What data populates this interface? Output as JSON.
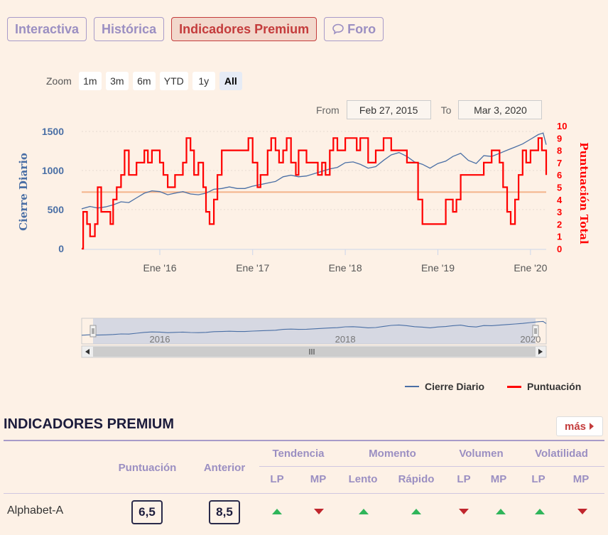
{
  "tabs": [
    {
      "label": "Interactiva",
      "active": false
    },
    {
      "label": "Histórica",
      "active": false
    },
    {
      "label": "Indicadores Premium",
      "active": true
    },
    {
      "label": "Foro",
      "active": false
    }
  ],
  "zoom": {
    "label": "Zoom",
    "buttons": [
      "1m",
      "3m",
      "6m",
      "YTD",
      "1y",
      "All"
    ],
    "selected": "All"
  },
  "range": {
    "from_label": "From",
    "from": "Feb 27, 2015",
    "to_label": "To",
    "to": "Mar 3, 2020"
  },
  "colors": {
    "close": "#4a6fa5",
    "score": "#ff0000",
    "ref": "#f4b48a",
    "tab_border": "#a89bc9",
    "accent": "#c43c3c"
  },
  "chart_data": {
    "type": "line",
    "xlabel": "",
    "y_left_label": "Cierre Diario",
    "y_right_label": "Puntuación Total",
    "y_left_ticks": [
      0,
      500,
      1000,
      1500
    ],
    "y_left_range": [
      0,
      1500
    ],
    "y_right_ticks": [
      0,
      1,
      2,
      3,
      4,
      5,
      6,
      7,
      8,
      9,
      10
    ],
    "y_right_range": [
      0,
      10
    ],
    "x_ticks": [
      {
        "date": "2016-01-01",
        "label": "Ene '16"
      },
      {
        "date": "2017-01-01",
        "label": "Ene '17"
      },
      {
        "date": "2018-01-01",
        "label": "Ene '18"
      },
      {
        "date": "2019-01-01",
        "label": "Ene '19"
      },
      {
        "date": "2020-01-01",
        "label": "Ene '20"
      }
    ],
    "x_range": [
      "2015-02-27",
      "2020-03-03"
    ],
    "reference_line": {
      "axis": "right",
      "value": 4.6
    },
    "legend_position": "bottom-right",
    "series": [
      {
        "name": "Cierre Diario",
        "axis": "left",
        "color": "#4a6fa5",
        "points": [
          [
            "2015-02-27",
            510
          ],
          [
            "2015-04-01",
            540
          ],
          [
            "2015-05-01",
            520
          ],
          [
            "2015-06-01",
            535
          ],
          [
            "2015-07-01",
            560
          ],
          [
            "2015-08-01",
            600
          ],
          [
            "2015-09-01",
            590
          ],
          [
            "2015-10-01",
            650
          ],
          [
            "2015-11-01",
            710
          ],
          [
            "2015-12-01",
            740
          ],
          [
            "2016-01-01",
            730
          ],
          [
            "2016-02-01",
            690
          ],
          [
            "2016-03-01",
            710
          ],
          [
            "2016-04-01",
            730
          ],
          [
            "2016-05-01",
            700
          ],
          [
            "2016-06-01",
            690
          ],
          [
            "2016-07-01",
            710
          ],
          [
            "2016-08-01",
            760
          ],
          [
            "2016-09-01",
            770
          ],
          [
            "2016-10-01",
            790
          ],
          [
            "2016-11-01",
            770
          ],
          [
            "2016-12-01",
            770
          ],
          [
            "2017-01-01",
            800
          ],
          [
            "2017-02-01",
            820
          ],
          [
            "2017-03-01",
            840
          ],
          [
            "2017-04-01",
            860
          ],
          [
            "2017-05-01",
            920
          ],
          [
            "2017-06-01",
            940
          ],
          [
            "2017-07-01",
            920
          ],
          [
            "2017-08-01",
            930
          ],
          [
            "2017-09-01",
            960
          ],
          [
            "2017-10-01",
            990
          ],
          [
            "2017-11-01",
            1020
          ],
          [
            "2017-12-01",
            1040
          ],
          [
            "2018-01-01",
            1100
          ],
          [
            "2018-02-01",
            1110
          ],
          [
            "2018-03-01",
            1080
          ],
          [
            "2018-04-01",
            1030
          ],
          [
            "2018-05-01",
            1050
          ],
          [
            "2018-06-01",
            1130
          ],
          [
            "2018-07-01",
            1200
          ],
          [
            "2018-08-01",
            1230
          ],
          [
            "2018-09-01",
            1180
          ],
          [
            "2018-10-01",
            1110
          ],
          [
            "2018-11-01",
            1080
          ],
          [
            "2018-12-01",
            1030
          ],
          [
            "2019-01-01",
            1090
          ],
          [
            "2019-02-01",
            1120
          ],
          [
            "2019-03-01",
            1180
          ],
          [
            "2019-04-01",
            1220
          ],
          [
            "2019-05-01",
            1130
          ],
          [
            "2019-06-01",
            1090
          ],
          [
            "2019-07-01",
            1190
          ],
          [
            "2019-08-01",
            1180
          ],
          [
            "2019-09-01",
            1220
          ],
          [
            "2019-10-01",
            1260
          ],
          [
            "2019-11-01",
            1300
          ],
          [
            "2019-12-01",
            1340
          ],
          [
            "2020-01-01",
            1400
          ],
          [
            "2020-02-01",
            1460
          ],
          [
            "2020-02-20",
            1480
          ],
          [
            "2020-03-03",
            1330
          ]
        ]
      },
      {
        "name": "Puntuación",
        "axis": "right",
        "color": "#ff0000",
        "points": [
          [
            "2015-02-27",
            0
          ],
          [
            "2015-03-05",
            3
          ],
          [
            "2015-03-20",
            2
          ],
          [
            "2015-04-01",
            1
          ],
          [
            "2015-04-20",
            2
          ],
          [
            "2015-05-01",
            5
          ],
          [
            "2015-05-15",
            3
          ],
          [
            "2015-06-01",
            3
          ],
          [
            "2015-06-20",
            2
          ],
          [
            "2015-07-01",
            4
          ],
          [
            "2015-07-15",
            5
          ],
          [
            "2015-08-01",
            6
          ],
          [
            "2015-08-15",
            8
          ],
          [
            "2015-09-01",
            6
          ],
          [
            "2015-10-01",
            7
          ],
          [
            "2015-11-01",
            8
          ],
          [
            "2015-11-15",
            7
          ],
          [
            "2015-12-01",
            8
          ],
          [
            "2016-01-01",
            7
          ],
          [
            "2016-01-15",
            6
          ],
          [
            "2016-02-01",
            5
          ],
          [
            "2016-03-01",
            6
          ],
          [
            "2016-04-01",
            7
          ],
          [
            "2016-04-15",
            9
          ],
          [
            "2016-05-01",
            8
          ],
          [
            "2016-05-15",
            6
          ],
          [
            "2016-06-01",
            7
          ],
          [
            "2016-06-20",
            5
          ],
          [
            "2016-07-01",
            3
          ],
          [
            "2016-07-15",
            2
          ],
          [
            "2016-08-01",
            4
          ],
          [
            "2016-08-15",
            6
          ],
          [
            "2016-09-01",
            8
          ],
          [
            "2016-10-01",
            8
          ],
          [
            "2016-11-01",
            8
          ],
          [
            "2016-12-01",
            8
          ],
          [
            "2016-12-15",
            9
          ],
          [
            "2017-01-01",
            7
          ],
          [
            "2017-01-20",
            5
          ],
          [
            "2017-02-01",
            6
          ],
          [
            "2017-03-01",
            8
          ],
          [
            "2017-03-15",
            9
          ],
          [
            "2017-04-01",
            8
          ],
          [
            "2017-04-15",
            7
          ],
          [
            "2017-05-01",
            8
          ],
          [
            "2017-05-15",
            9
          ],
          [
            "2017-06-01",
            7
          ],
          [
            "2017-06-20",
            6
          ],
          [
            "2017-07-01",
            8
          ],
          [
            "2017-08-01",
            7
          ],
          [
            "2017-09-01",
            7
          ],
          [
            "2017-09-15",
            6
          ],
          [
            "2017-10-01",
            7
          ],
          [
            "2017-10-15",
            6
          ],
          [
            "2017-11-01",
            8
          ],
          [
            "2017-11-15",
            9
          ],
          [
            "2017-12-01",
            8
          ],
          [
            "2018-01-01",
            9
          ],
          [
            "2018-02-01",
            9
          ],
          [
            "2018-02-15",
            8
          ],
          [
            "2018-03-01",
            9
          ],
          [
            "2018-04-01",
            7
          ],
          [
            "2018-05-01",
            8
          ],
          [
            "2018-06-01",
            9
          ],
          [
            "2018-07-01",
            8
          ],
          [
            "2018-08-01",
            8
          ],
          [
            "2018-09-01",
            7
          ],
          [
            "2018-10-01",
            7
          ],
          [
            "2018-10-15",
            4
          ],
          [
            "2018-11-01",
            2
          ],
          [
            "2018-12-01",
            2
          ],
          [
            "2019-01-01",
            2
          ],
          [
            "2019-02-01",
            4
          ],
          [
            "2019-03-01",
            3
          ],
          [
            "2019-03-15",
            4
          ],
          [
            "2019-04-01",
            6
          ],
          [
            "2019-05-01",
            6
          ],
          [
            "2019-06-01",
            6
          ],
          [
            "2019-07-01",
            7
          ],
          [
            "2019-08-01",
            8
          ],
          [
            "2019-09-01",
            7
          ],
          [
            "2019-09-15",
            5
          ],
          [
            "2019-10-01",
            3
          ],
          [
            "2019-10-15",
            2
          ],
          [
            "2019-11-01",
            4
          ],
          [
            "2019-11-15",
            6
          ],
          [
            "2019-12-01",
            8
          ],
          [
            "2019-12-15",
            7
          ],
          [
            "2020-01-01",
            8
          ],
          [
            "2020-02-01",
            9
          ],
          [
            "2020-02-15",
            8
          ],
          [
            "2020-03-03",
            6
          ]
        ]
      }
    ],
    "navigator": {
      "x_labels": [
        {
          "date": "2016-01-01",
          "label": "2016"
        },
        {
          "date": "2018-01-01",
          "label": "2018"
        },
        {
          "date": "2020-01-01",
          "label": "2020"
        }
      ]
    }
  },
  "legend": {
    "items": [
      {
        "label": "Cierre Diario",
        "color": "#4a6fa5"
      },
      {
        "label": "Puntuación",
        "color": "#ff0000"
      }
    ]
  },
  "premium": {
    "title": "INDICADORES PREMIUM",
    "more_label": "más",
    "headers": {
      "score": "Puntuación",
      "previous": "Anterior",
      "tendencia": "Tendencia",
      "momento": "Momento",
      "volumen": "Volumen",
      "volatilidad": "Volatilidad"
    },
    "subheaders": [
      "LP",
      "MP",
      "Lento",
      "Rápido",
      "LP",
      "MP",
      "LP",
      "MP"
    ],
    "row": {
      "name": "Alphabet-A",
      "score": "6,5",
      "previous": "8,5",
      "arrows": [
        "up",
        "down",
        "up",
        "up",
        "down",
        "up",
        "up",
        "down"
      ]
    }
  }
}
